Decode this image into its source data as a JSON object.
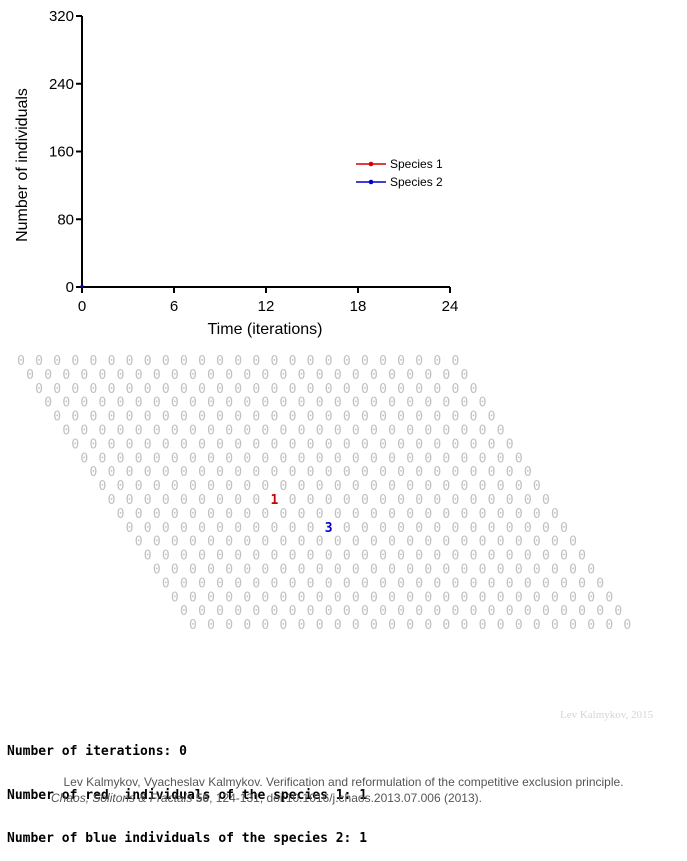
{
  "chart_data": {
    "type": "line",
    "x": [
      0
    ],
    "series": [
      {
        "name": "Species 1",
        "color": "#d00000",
        "values": [
          1
        ]
      },
      {
        "name": "Species 2",
        "color": "#0000c8",
        "values": [
          1
        ]
      }
    ],
    "xlabel": "Time (iterations)",
    "ylabel": "Number of individuals",
    "xlim": [
      0,
      24
    ],
    "ylim": [
      0,
      320
    ],
    "xticks": [
      "0",
      "6",
      "12",
      "18",
      "24"
    ],
    "yticks": [
      "0",
      "80",
      "160",
      "240",
      "320"
    ],
    "legend": "right",
    "grid": false
  },
  "lattice": {
    "rows": 20,
    "cols": 25,
    "empty_symbol": "0",
    "empty_color": "#c0c0c0",
    "cells": [
      {
        "row": 10,
        "col": 9,
        "symbol": "1",
        "color": "#d00000"
      },
      {
        "row": 12,
        "col": 11,
        "symbol": "3",
        "color": "#0000c8"
      }
    ]
  },
  "status": {
    "iterations": "Number of iterations: 0",
    "red": "Number of red  individuals of the species 1: 1",
    "blue": "Number of blue individuals of the species 2: 1"
  },
  "watermark": "Lev Kalmykov, 2015",
  "credit": {
    "line1": "Lev Kalmykov, Vyacheslav Kalmykov. Verification and reformulation of the competitive exclusion principle.",
    "journal": "Chaos, Solitons & Fractals",
    "volume": "56",
    "rest": ", 124-131, doi:10.1016/j.chaos.2013.07.006 (2013)."
  }
}
